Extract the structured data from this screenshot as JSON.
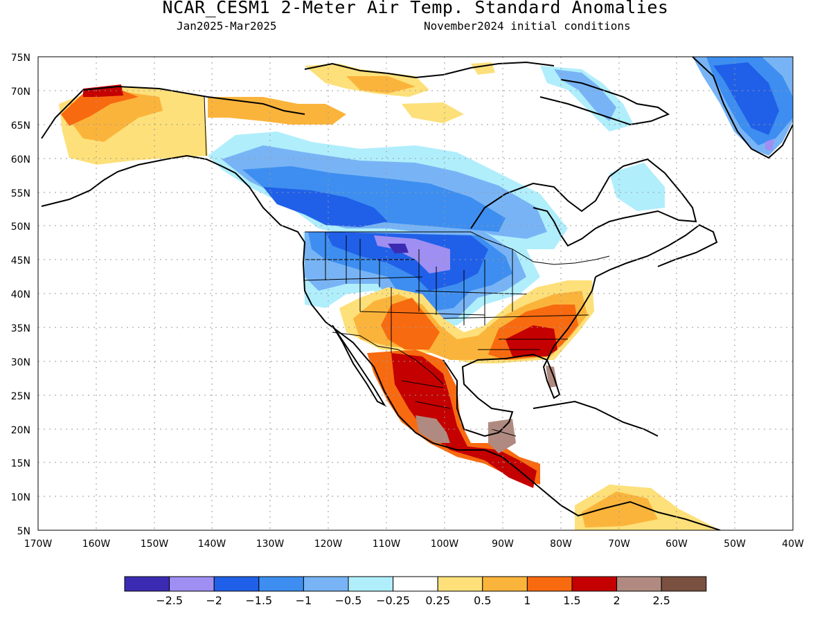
{
  "title": "NCAR_CESM1 2-Meter Air Temp. Standard Anomalies",
  "period": "Jan2025-Mar2025",
  "init": "November2024 initial conditions",
  "map": {
    "lon_range": [
      -170,
      -40
    ],
    "lat_range": [
      5,
      75
    ],
    "lat_labels": [
      "75N",
      "70N",
      "65N",
      "60N",
      "55N",
      "50N",
      "45N",
      "40N",
      "35N",
      "30N",
      "25N",
      "20N",
      "15N",
      "10N",
      "5N"
    ],
    "lon_labels": [
      "170W",
      "160W",
      "150W",
      "140W",
      "130W",
      "120W",
      "110W",
      "100W",
      "90W",
      "80W",
      "70W",
      "60W",
      "50W",
      "40W"
    ],
    "grid": "dotted"
  },
  "colorbar": {
    "colors": [
      "#3b2bb3",
      "#9f8ff2",
      "#2060e8",
      "#3d8ef0",
      "#78b4f5",
      "#b0eefc",
      "#ffffff",
      "#fde07a",
      "#fbb43b",
      "#f86a10",
      "#c40000",
      "#b08a80",
      "#7a5040"
    ],
    "labels": [
      "-2.5",
      "-2",
      "-1.5",
      "-1",
      "-0.5",
      "-0.25",
      "0.25",
      "0.5",
      "1",
      "1.5",
      "2",
      "2.5"
    ]
  }
}
